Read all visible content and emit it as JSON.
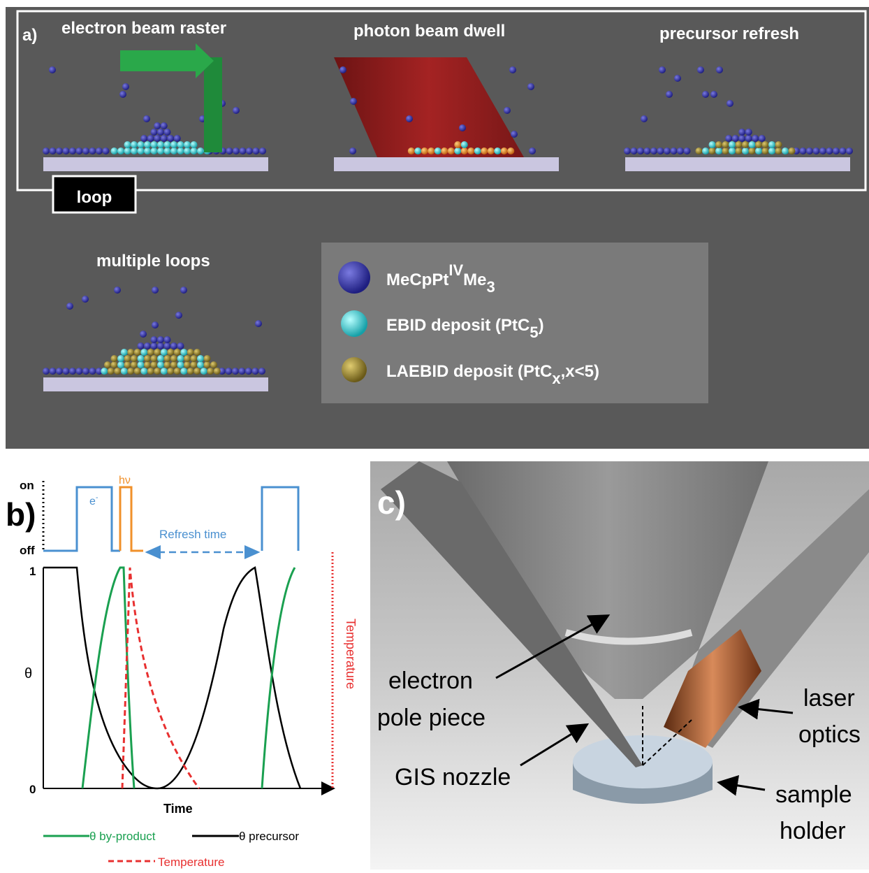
{
  "panel_a": {
    "label": "a)",
    "steps": [
      "electron beam raster",
      "photon beam dwell",
      "precursor refresh"
    ],
    "loop": "loop",
    "multiple": "multiple loops",
    "legend": [
      {
        "text": "MeCpPt",
        "sup": "IV",
        "text2": "Me",
        "sub": "3"
      },
      {
        "text": "EBID deposit (PtC",
        "sub": "5",
        "text2": ")"
      },
      {
        "text": "LAEBID deposit (PtC",
        "sub": "x",
        "text2": ",x<5)"
      }
    ]
  },
  "panel_b": {
    "label": "b)",
    "on": "on",
    "off": "off",
    "y_top": "1",
    "y_mid": "θ",
    "y_bottom": "0",
    "electron": "e",
    "electron_sup": "-",
    "photon": "hν",
    "refresh": "Refresh time",
    "x_label": "Time",
    "temperature_axis": "Temperature",
    "legend": [
      "θ by-product",
      "θ precursor",
      "Temperature"
    ]
  },
  "panel_c": {
    "label": "c)",
    "electron": [
      "electron",
      "pole piece"
    ],
    "laser": [
      "laser",
      "optics"
    ],
    "nozzle": "GIS nozzle",
    "holder": [
      "sample",
      "holder"
    ]
  }
}
